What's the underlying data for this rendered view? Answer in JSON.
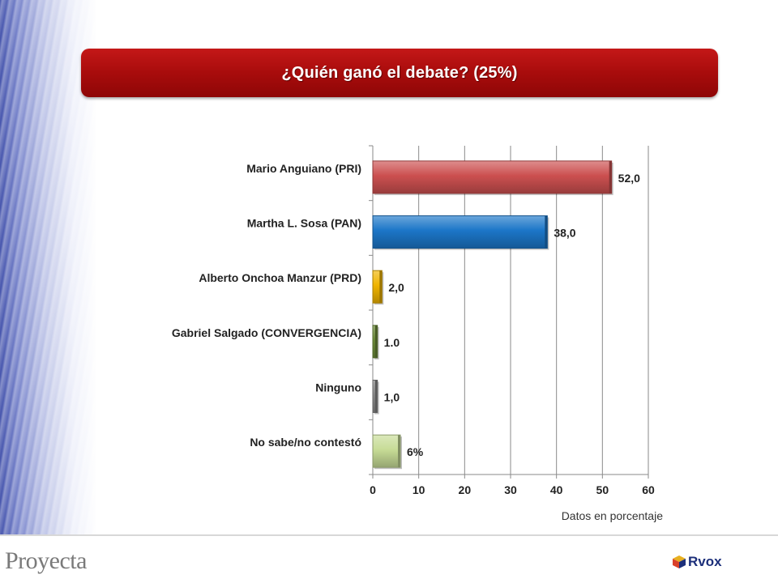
{
  "title": "¿Quién ganó el debate? (25%)",
  "note": "Datos en porcentaje",
  "logos": {
    "left": "Proyecta",
    "right": "Rvox"
  },
  "chart_data": {
    "type": "bar",
    "orientation": "horizontal",
    "categories": [
      "Mario Anguiano (PRI)",
      "Martha L. Sosa  (PAN)",
      "Alberto Onchoa Manzur (PRD)",
      "Gabriel Salgado (CONVERGENCIA)",
      "Ninguno",
      "No sabe/no contestó"
    ],
    "values": [
      52,
      38,
      2,
      1,
      1,
      6
    ],
    "data_labels": [
      "52,0",
      "38,0",
      "2,0",
      "1.0",
      "1,0",
      "6%"
    ],
    "colors": [
      "#cc5050",
      "#1c76c8",
      "#f0b400",
      "#6f8f3a",
      "#8c8c8c",
      "#c7dc96"
    ],
    "xlim": [
      0,
      60
    ],
    "xticks": [
      0,
      10,
      20,
      30,
      40,
      50,
      60
    ],
    "grid": true,
    "legend": "none"
  }
}
